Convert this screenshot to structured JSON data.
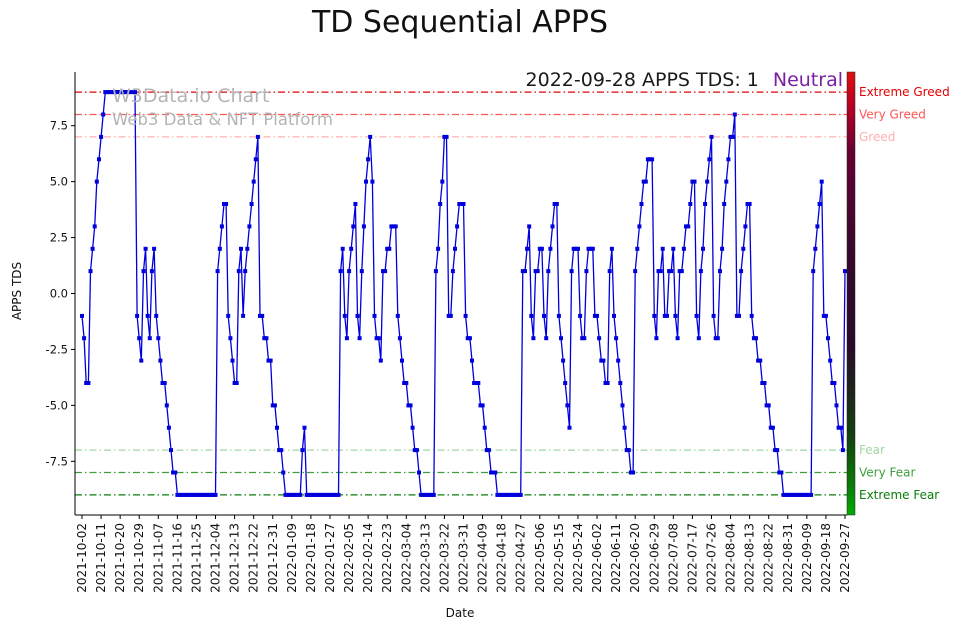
{
  "title": "TD Sequential APPS",
  "watermark": {
    "line1": "W3Data.io Chart",
    "line2": "Web3 Data & NFT Platform"
  },
  "annotation": {
    "date_text": "2022-09-28 APPS TDS: 1",
    "sentiment": "Neutral",
    "sentiment_color": "#7b1fa2"
  },
  "axes": {
    "y_label": "APPS TDS",
    "x_label": "Date"
  },
  "chart_data": {
    "type": "line",
    "series_name": "APPS TDS",
    "line_color": "#0000dd",
    "marker": "square",
    "ylim": [
      -9.9,
      9.9
    ],
    "y_ticks": [
      "7.5",
      "5.0",
      "2.5",
      "0.0",
      "-2.5",
      "-5.0",
      "-7.5"
    ],
    "x_tick_labels": [
      "2021-10-02",
      "2021-10-11",
      "2021-10-20",
      "2021-10-29",
      "2021-11-07",
      "2021-11-16",
      "2021-11-25",
      "2021-12-04",
      "2021-12-13",
      "2021-12-22",
      "2021-12-31",
      "2022-01-09",
      "2022-01-18",
      "2022-01-27",
      "2022-02-05",
      "2022-02-14",
      "2022-02-23",
      "2022-03-04",
      "2022-03-13",
      "2022-03-22",
      "2022-03-31",
      "2022-04-09",
      "2022-04-18",
      "2022-04-27",
      "2022-05-06",
      "2022-05-15",
      "2022-05-24",
      "2022-06-02",
      "2022-06-11",
      "2022-06-20",
      "2022-06-29",
      "2022-07-08",
      "2022-07-17",
      "2022-07-26",
      "2022-08-04",
      "2022-08-13",
      "2022-08-22",
      "2022-08-31",
      "2022-09-09",
      "2022-09-18",
      "2022-09-27"
    ],
    "values": [
      -1,
      -2,
      -4,
      -4,
      1,
      2,
      3,
      5,
      6,
      7,
      8,
      9,
      9,
      9,
      9,
      9,
      9,
      9,
      9,
      9,
      9,
      9,
      9,
      9,
      9,
      9,
      -1,
      -2,
      -3,
      1,
      2,
      -1,
      -2,
      1,
      2,
      -1,
      -2,
      -3,
      -4,
      -4,
      -5,
      -6,
      -7,
      -8,
      -8,
      -9,
      -9,
      -9,
      -9,
      -9,
      -9,
      -9,
      -9,
      -9,
      -9,
      -9,
      -9,
      -9,
      -9,
      -9,
      -9,
      -9,
      -9,
      -9,
      1,
      2,
      3,
      4,
      4,
      -1,
      -2,
      -3,
      -4,
      -4,
      1,
      2,
      -1,
      1,
      2,
      3,
      4,
      5,
      6,
      7,
      -1,
      -1,
      -2,
      -2,
      -3,
      -3,
      -5,
      -5,
      -6,
      -7,
      -7,
      -8,
      -9,
      -9,
      -9,
      -9,
      -9,
      -9,
      -9,
      -9,
      -7,
      -6,
      -9,
      -9,
      -9,
      -9,
      -9,
      -9,
      -9,
      -9,
      -9,
      -9,
      -9,
      -9,
      -9,
      -9,
      -9,
      -9,
      1,
      2,
      -1,
      -2,
      1,
      2,
      3,
      4,
      -1,
      -2,
      1,
      3,
      5,
      6,
      7,
      5,
      -1,
      -2,
      -2,
      -3,
      1,
      1,
      2,
      2,
      3,
      3,
      3,
      -1,
      -2,
      -3,
      -4,
      -4,
      -5,
      -5,
      -6,
      -7,
      -7,
      -8,
      -9,
      -9,
      -9,
      -9,
      -9,
      -9,
      -9,
      1,
      2,
      4,
      5,
      7,
      7,
      -1,
      -1,
      1,
      2,
      3,
      4,
      4,
      4,
      -1,
      -2,
      -2,
      -3,
      -4,
      -4,
      -4,
      -5,
      -5,
      -6,
      -7,
      -7,
      -8,
      -8,
      -8,
      -9,
      -9,
      -9,
      -9,
      -9,
      -9,
      -9,
      -9,
      -9,
      -9,
      -9,
      -9,
      1,
      1,
      2,
      3,
      -1,
      -2,
      1,
      1,
      2,
      2,
      -1,
      -2,
      1,
      2,
      3,
      4,
      4,
      -1,
      -2,
      -3,
      -4,
      -5,
      -6,
      1,
      2,
      2,
      2,
      -1,
      -2,
      -2,
      1,
      2,
      2,
      2,
      -1,
      -1,
      -2,
      -3,
      -3,
      -4,
      -4,
      1,
      2,
      -1,
      -2,
      -3,
      -4,
      -5,
      -6,
      -7,
      -7,
      -8,
      -8,
      1,
      2,
      3,
      4,
      5,
      5,
      6,
      6,
      6,
      -1,
      -2,
      1,
      1,
      2,
      -1,
      -1,
      1,
      1,
      2,
      -1,
      -2,
      1,
      1,
      2,
      3,
      3,
      4,
      5,
      5,
      -1,
      -2,
      1,
      2,
      4,
      5,
      6,
      7,
      -1,
      -2,
      -2,
      1,
      2,
      4,
      5,
      6,
      7,
      7,
      8,
      -1,
      -1,
      1,
      2,
      3,
      4,
      4,
      -1,
      -2,
      -2,
      -3,
      -3,
      -4,
      -4,
      -5,
      -5,
      -6,
      -6,
      -7,
      -7,
      -8,
      -8,
      -9,
      -9,
      -9,
      -9,
      -9,
      -9,
      -9,
      -9,
      -9,
      -9,
      -9,
      -9,
      -9,
      -9,
      1,
      2,
      3,
      4,
      5,
      -1,
      -1,
      -2,
      -3,
      -4,
      -4,
      -5,
      -6,
      -6,
      -7,
      1
    ],
    "thresholds": [
      {
        "value": 9,
        "label": "Extreme Greed",
        "color": "#e60000"
      },
      {
        "value": 8,
        "label": "Very Greed",
        "color": "#ff5555"
      },
      {
        "value": 7,
        "label": "Greed",
        "color": "#ffb0b0"
      },
      {
        "value": -7,
        "label": "Fear",
        "color": "#a0d9a0"
      },
      {
        "value": -8,
        "label": "Very Fear",
        "color": "#3d9e3d"
      },
      {
        "value": -9,
        "label": "Extreme Fear",
        "color": "#0a7d0a"
      }
    ],
    "colorbar_stops": [
      {
        "offset": 0.0,
        "color": "#dd1111"
      },
      {
        "offset": 0.07,
        "color": "#bb0022"
      },
      {
        "offset": 0.18,
        "color": "#660033"
      },
      {
        "offset": 0.4,
        "color": "#38082e"
      },
      {
        "offset": 0.62,
        "color": "#2a0a28"
      },
      {
        "offset": 0.82,
        "color": "#13400f"
      },
      {
        "offset": 0.93,
        "color": "#0a7a0a"
      },
      {
        "offset": 1.0,
        "color": "#00aa00"
      }
    ]
  }
}
